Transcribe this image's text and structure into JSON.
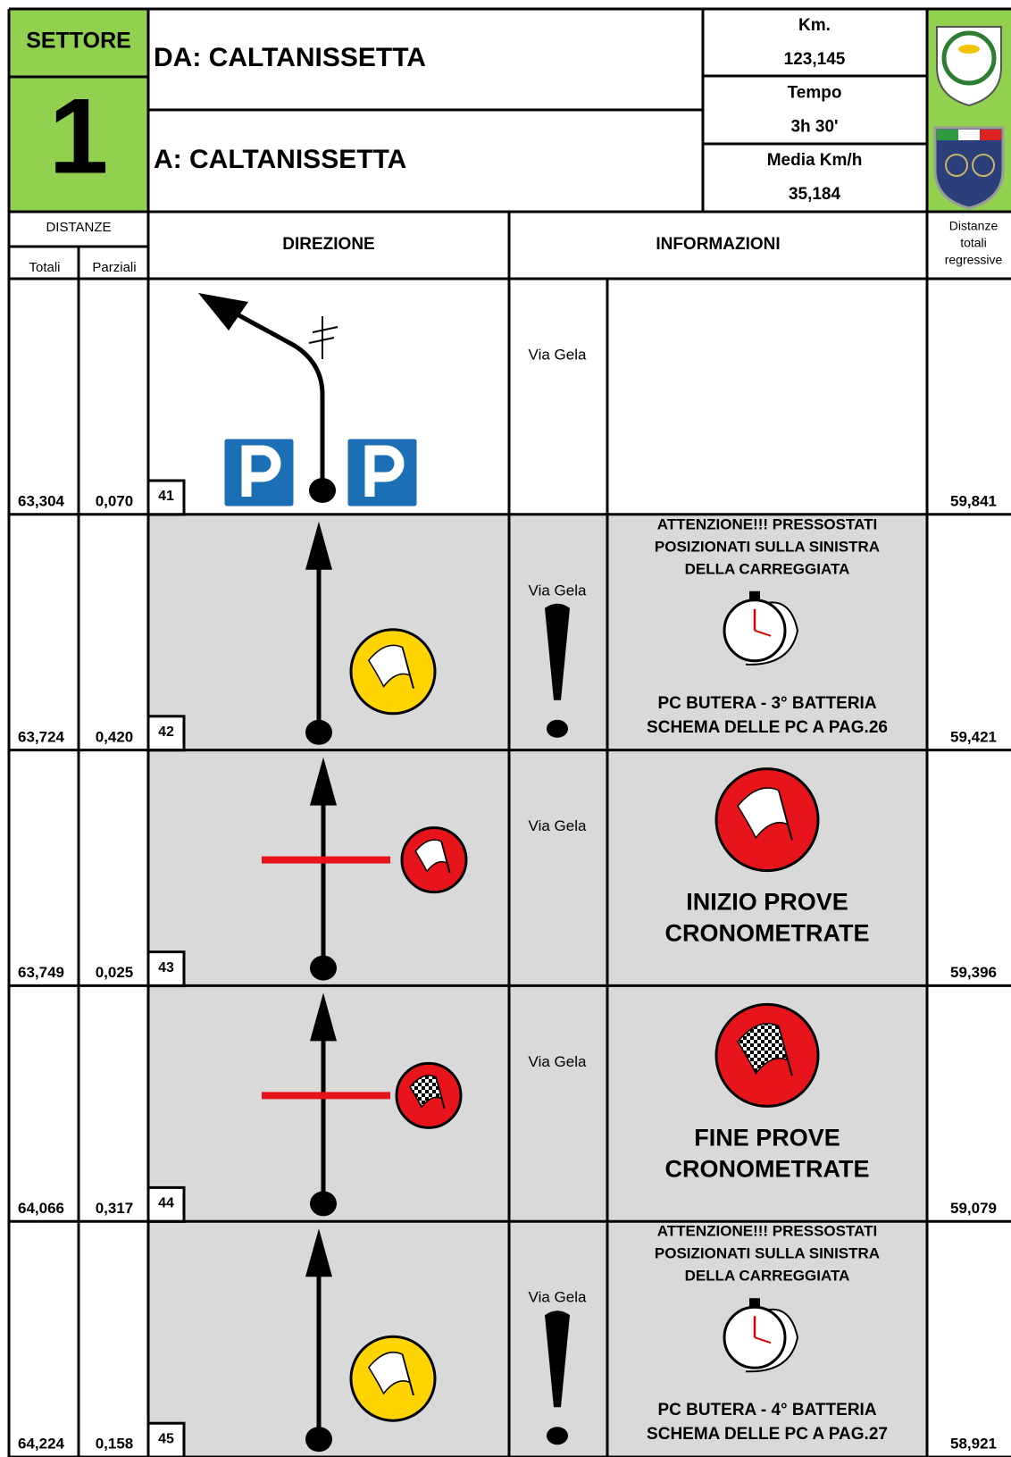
{
  "header": {
    "sector_label": "SETTORE",
    "sector_number": "1",
    "from": "DA: CALTANISSETTA",
    "to": "A: CALTANISSETTA",
    "km_label": "Km.",
    "km": "123,145",
    "time_label": "Tempo",
    "time": "3h 30'",
    "average_label": "Media Km/h",
    "average": "35,184"
  },
  "columns": {
    "distances": "DISTANZE",
    "totals": "Totali",
    "partials": "Parziali",
    "direction": "DIREZIONE",
    "information": "INFORMAZIONI",
    "regressive": [
      "Distanze",
      "totali",
      "regressive"
    ]
  },
  "rows": [
    {
      "total": "63,304",
      "partial": "0,070",
      "number": "41",
      "street": "Via Gela",
      "regressive": "59,841"
    },
    {
      "total": "63,724",
      "partial": "0,420",
      "number": "42",
      "street": "Via Gela",
      "notes": [
        "ATTENZIONE!!! PRESSOSTATI",
        "POSIZIONATI SULLA SINISTRA",
        "DELLA CARREGGIATA"
      ],
      "pc": "PC BUTERA - 3° BATTERIA",
      "schema": "SCHEMA DELLE PC A PAG.26",
      "regressive": "59,421"
    },
    {
      "total": "63,749",
      "partial": "0,025",
      "number": "43",
      "street": "Via Gela",
      "title": [
        "INIZIO PROVE",
        "CRONOMETRATE"
      ],
      "regressive": "59,396"
    },
    {
      "total": "64,066",
      "partial": "0,317",
      "number": "44",
      "street": "Via Gela",
      "title": [
        "FINE PROVE",
        "CRONOMETRATE"
      ],
      "regressive": "59,079"
    },
    {
      "total": "64,224",
      "partial": "0,158",
      "number": "45",
      "street": "Via Gela",
      "notes": [
        "ATTENZIONE!!! PRESSOSTATI",
        "POSIZIONATI SULLA SINISTRA",
        "DELLA CARREGGIATA"
      ],
      "pc": "PC BUTERA - 4° BATTERIA",
      "schema": "SCHEMA DELLE PC A PAG.27",
      "regressive": "58,921"
    }
  ]
}
